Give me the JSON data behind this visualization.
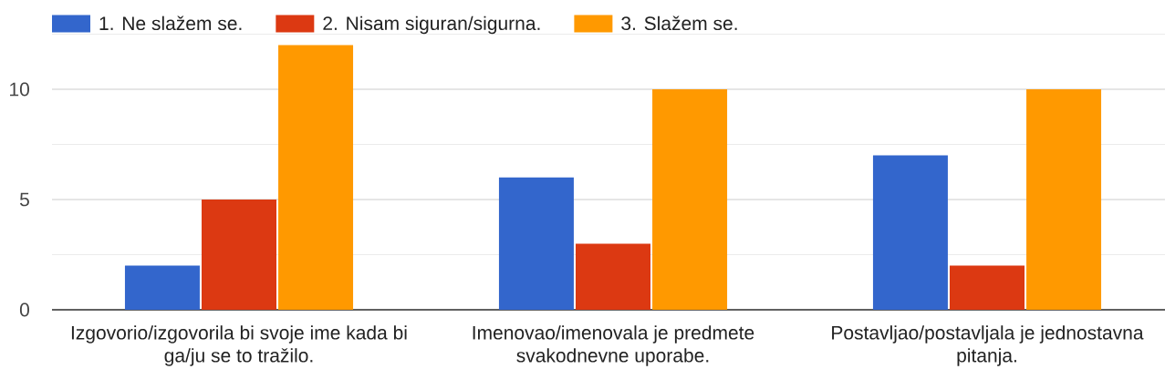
{
  "chart_data": {
    "type": "bar",
    "categories": [
      "Izgovorio/izgovorila bi svoje ime kada bi ga/ju se to tražilo.",
      "Imenovao/imenovala je predmete svakodnevne uporabe.",
      "Postavljao/postavljala je jednostavna pitanja."
    ],
    "series": [
      {
        "name": "1. Ne slažem se.",
        "color": "#3366cc",
        "values": [
          2,
          6,
          7
        ]
      },
      {
        "name": "2. Nisam siguran/sigurna.",
        "color": "#dc3912",
        "values": [
          5,
          3,
          2
        ]
      },
      {
        "name": "3. Slažem se.",
        "color": "#ff9900",
        "values": [
          12,
          10,
          10
        ]
      }
    ],
    "ylim": [
      0,
      12.5
    ],
    "yticks": [
      0,
      {
        "value": 2.5,
        "label": null
      },
      5,
      {
        "value": 7.5,
        "label": null
      },
      10,
      {
        "value": 12.5,
        "label": null
      }
    ],
    "grid": "y",
    "legend": "top left"
  }
}
